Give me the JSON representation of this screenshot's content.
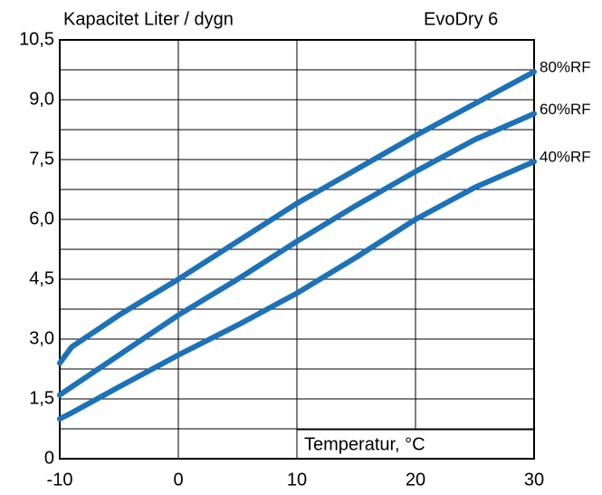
{
  "chart_data": {
    "type": "line",
    "title": "Kapacitet  Liter / dygn",
    "annotation": "EvoDry 6",
    "xlabel": "Temperatur, °C",
    "x": [
      -10,
      -9,
      -5,
      0,
      5,
      10,
      15,
      20,
      25,
      30
    ],
    "series": [
      {
        "name": "80%RF",
        "color": "#1b72b8",
        "values": [
          2.4,
          2.8,
          3.6,
          4.5,
          5.45,
          6.4,
          7.25,
          8.1,
          8.9,
          9.7
        ]
      },
      {
        "name": "60%RF",
        "color": "#1b72b8",
        "values": [
          1.6,
          1.8,
          2.6,
          3.6,
          4.5,
          5.45,
          6.35,
          7.2,
          8.0,
          8.65
        ]
      },
      {
        "name": "40%RF",
        "color": "#1b72b8",
        "values": [
          1.0,
          1.15,
          1.8,
          2.6,
          3.35,
          4.15,
          5.05,
          6.0,
          6.8,
          7.45
        ]
      }
    ],
    "xlim": [
      -10,
      30
    ],
    "xticks": [
      -10,
      0,
      10,
      20,
      30
    ],
    "ylim": [
      0,
      10.5
    ],
    "yticks": [
      0,
      {
        "value": 1.5,
        "label": "1,5"
      },
      {
        "value": 3,
        "label": "3,0"
      },
      {
        "value": 4.5,
        "label": "4,5"
      },
      {
        "value": 6,
        "label": "6,0"
      },
      {
        "value": 7.5,
        "label": "7,5"
      },
      {
        "value": 9,
        "label": "9,0"
      },
      {
        "value": 10.5,
        "label": "10,5"
      }
    ],
    "y_minor_ticks": [
      0.75,
      2.25,
      3.75,
      5.25,
      6.75,
      8.25,
      9.75
    ],
    "grid": true
  }
}
